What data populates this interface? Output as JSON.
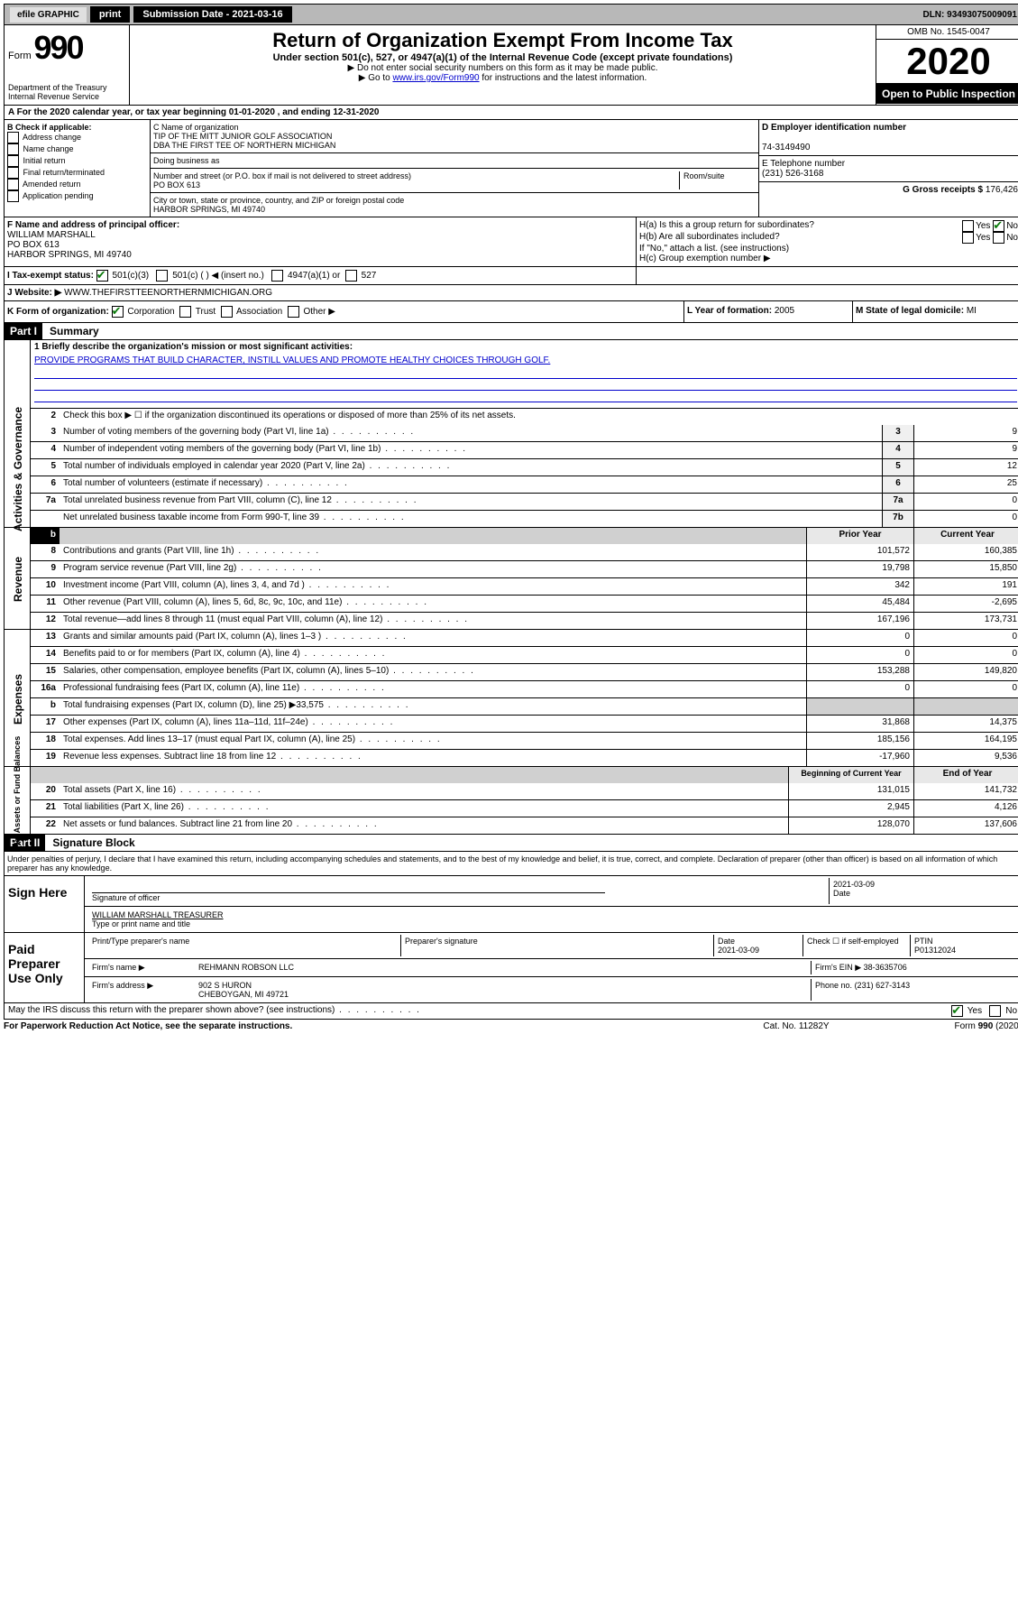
{
  "topbar": {
    "efile": "efile GRAPHIC",
    "print": "print",
    "submission_label": "Submission Date - 2021-03-16",
    "dln": "DLN: 93493075009091"
  },
  "header": {
    "form_prefix": "Form",
    "form_num": "990",
    "title": "Return of Organization Exempt From Income Tax",
    "subtitle": "Under section 501(c), 527, or 4947(a)(1) of the Internal Revenue Code (except private foundations)",
    "note1": "▶ Do not enter social security numbers on this form as it may be made public.",
    "note2_pre": "▶ Go to ",
    "note2_link": "www.irs.gov/Form990",
    "note2_post": " for instructions and the latest information.",
    "dept": "Department of the Treasury",
    "irs": "Internal Revenue Service",
    "omb": "OMB No. 1545-0047",
    "year": "2020",
    "open": "Open to Public Inspection"
  },
  "row_a": "A For the 2020 calendar year, or tax year beginning 01-01-2020    , and ending 12-31-2020",
  "box_b": {
    "label": "B Check if applicable:",
    "items": [
      "Address change",
      "Name change",
      "Initial return",
      "Final return/terminated",
      "Amended return",
      "Application pending"
    ]
  },
  "box_c": {
    "name_label": "C Name of organization",
    "name1": "TIP OF THE MITT JUNIOR GOLF ASSOCIATION",
    "name2": "DBA THE FIRST TEE OF NORTHERN MICHIGAN",
    "dba_label": "Doing business as",
    "addr_label": "Number and street (or P.O. box if mail is not delivered to street address)",
    "room_label": "Room/suite",
    "addr": "PO BOX 613",
    "city_label": "City or town, state or province, country, and ZIP or foreign postal code",
    "city": "HARBOR SPRINGS, MI  49740"
  },
  "box_d": {
    "ein_label": "D Employer identification number",
    "ein": "74-3149490",
    "tel_label": "E Telephone number",
    "tel": "(231) 526-3168",
    "gross_label": "G Gross receipts $",
    "gross": "176,426"
  },
  "box_f": {
    "label": "F  Name and address of principal officer:",
    "name": "WILLIAM MARSHALL",
    "addr1": "PO BOX 613",
    "addr2": "HARBOR SPRINGS, MI  49740"
  },
  "box_h": {
    "ha": "H(a)  Is this a group return for subordinates?",
    "hb": "H(b)  Are all subordinates included?",
    "hb_note": "If \"No,\" attach a list. (see instructions)",
    "hc": "H(c)  Group exemption number ▶"
  },
  "box_i": {
    "label": "I  Tax-exempt status:",
    "opts": [
      "501(c)(3)",
      "501(c) (  ) ◀ (insert no.)",
      "4947(a)(1) or",
      "527"
    ]
  },
  "box_j": {
    "label": "J  Website: ▶",
    "value": "  WWW.THEFIRSTTEENORTHERNMICHIGAN.ORG"
  },
  "box_k": {
    "label": "K Form of organization:",
    "opts": [
      "Corporation",
      "Trust",
      "Association",
      "Other ▶"
    ]
  },
  "box_l": {
    "label": "L Year of formation:",
    "val": "2005"
  },
  "box_m": {
    "label": "M State of legal domicile:",
    "val": "MI"
  },
  "part1": {
    "header": "Part I",
    "title": "Summary",
    "line1_label": "1  Briefly describe the organization's mission or most significant activities:",
    "mission": "PROVIDE PROGRAMS THAT BUILD CHARACTER, INSTILL VALUES AND PROMOTE HEALTHY CHOICES THROUGH GOLF.",
    "line2": "Check this box ▶ ☐  if the organization discontinued its operations or disposed of more than 25% of its net assets.",
    "lines_gov": [
      {
        "n": "3",
        "d": "Number of voting members of the governing body (Part VI, line 1a)",
        "box": "3",
        "v": "9"
      },
      {
        "n": "4",
        "d": "Number of independent voting members of the governing body (Part VI, line 1b)",
        "box": "4",
        "v": "9"
      },
      {
        "n": "5",
        "d": "Total number of individuals employed in calendar year 2020 (Part V, line 2a)",
        "box": "5",
        "v": "12"
      },
      {
        "n": "6",
        "d": "Total number of volunteers (estimate if necessary)",
        "box": "6",
        "v": "25"
      },
      {
        "n": "7a",
        "d": "Total unrelated business revenue from Part VIII, column (C), line 12",
        "box": "7a",
        "v": "0"
      },
      {
        "n": "",
        "d": "Net unrelated business taxable income from Form 990-T, line 39",
        "box": "7b",
        "v": "0"
      }
    ],
    "col_prior": "Prior Year",
    "col_current": "Current Year",
    "lines_rev": [
      {
        "n": "8",
        "d": "Contributions and grants (Part VIII, line 1h)",
        "p": "101,572",
        "c": "160,385"
      },
      {
        "n": "9",
        "d": "Program service revenue (Part VIII, line 2g)",
        "p": "19,798",
        "c": "15,850"
      },
      {
        "n": "10",
        "d": "Investment income (Part VIII, column (A), lines 3, 4, and 7d )",
        "p": "342",
        "c": "191"
      },
      {
        "n": "11",
        "d": "Other revenue (Part VIII, column (A), lines 5, 6d, 8c, 9c, 10c, and 11e)",
        "p": "45,484",
        "c": "-2,695"
      },
      {
        "n": "12",
        "d": "Total revenue—add lines 8 through 11 (must equal Part VIII, column (A), line 12)",
        "p": "167,196",
        "c": "173,731"
      }
    ],
    "lines_exp": [
      {
        "n": "13",
        "d": "Grants and similar amounts paid (Part IX, column (A), lines 1–3 )",
        "p": "0",
        "c": "0"
      },
      {
        "n": "14",
        "d": "Benefits paid to or for members (Part IX, column (A), line 4)",
        "p": "0",
        "c": "0"
      },
      {
        "n": "15",
        "d": "Salaries, other compensation, employee benefits (Part IX, column (A), lines 5–10)",
        "p": "153,288",
        "c": "149,820"
      },
      {
        "n": "16a",
        "d": "Professional fundraising fees (Part IX, column (A), line 11e)",
        "p": "0",
        "c": "0"
      },
      {
        "n": "b",
        "d": "Total fundraising expenses (Part IX, column (D), line 25) ▶33,575",
        "p": "",
        "c": "",
        "shaded": true
      },
      {
        "n": "17",
        "d": "Other expenses (Part IX, column (A), lines 11a–11d, 11f–24e)",
        "p": "31,868",
        "c": "14,375"
      },
      {
        "n": "18",
        "d": "Total expenses. Add lines 13–17 (must equal Part IX, column (A), line 25)",
        "p": "185,156",
        "c": "164,195"
      },
      {
        "n": "19",
        "d": "Revenue less expenses. Subtract line 18 from line 12",
        "p": "-17,960",
        "c": "9,536"
      }
    ],
    "col_begin": "Beginning of Current Year",
    "col_end": "End of Year",
    "lines_net": [
      {
        "n": "20",
        "d": "Total assets (Part X, line 16)",
        "p": "131,015",
        "c": "141,732"
      },
      {
        "n": "21",
        "d": "Total liabilities (Part X, line 26)",
        "p": "2,945",
        "c": "4,126"
      },
      {
        "n": "22",
        "d": "Net assets or fund balances. Subtract line 21 from line 20",
        "p": "128,070",
        "c": "137,606"
      }
    ],
    "side_gov": "Activities & Governance",
    "side_rev": "Revenue",
    "side_exp": "Expenses",
    "side_net": "Net Assets or Fund Balances"
  },
  "part2": {
    "header": "Part II",
    "title": "Signature Block",
    "perjury": "Under penalties of perjury, I declare that I have examined this return, including accompanying schedules and statements, and to the best of my knowledge and belief, it is true, correct, and complete. Declaration of preparer (other than officer) is based on all information of which preparer has any knowledge."
  },
  "sign": {
    "label": "Sign Here",
    "sig_officer": "Signature of officer",
    "date": "2021-03-09",
    "date_label": "Date",
    "name": "WILLIAM MARSHALL  TREASURER",
    "name_label": "Type or print name and title"
  },
  "paid": {
    "label": "Paid Preparer Use Only",
    "h1": "Print/Type preparer's name",
    "h2": "Preparer's signature",
    "h3": "Date",
    "h3v": "2021-03-09",
    "h4": "Check ☐ if self-employed",
    "h5": "PTIN",
    "h5v": "P01312024",
    "firm_name_label": "Firm's name    ▶",
    "firm_name": "REHMANN ROBSON LLC",
    "firm_ein_label": "Firm's EIN ▶",
    "firm_ein": "38-3635706",
    "firm_addr_label": "Firm's address ▶",
    "firm_addr1": "902 S HURON",
    "firm_addr2": "CHEBOYGAN, MI  49721",
    "phone_label": "Phone no.",
    "phone": "(231) 627-3143"
  },
  "footer": {
    "discuss": "May the IRS discuss this return with the preparer shown above? (see instructions)",
    "paperwork": "For Paperwork Reduction Act Notice, see the separate instructions.",
    "cat": "Cat. No. 11282Y",
    "form": "Form 990 (2020)"
  }
}
